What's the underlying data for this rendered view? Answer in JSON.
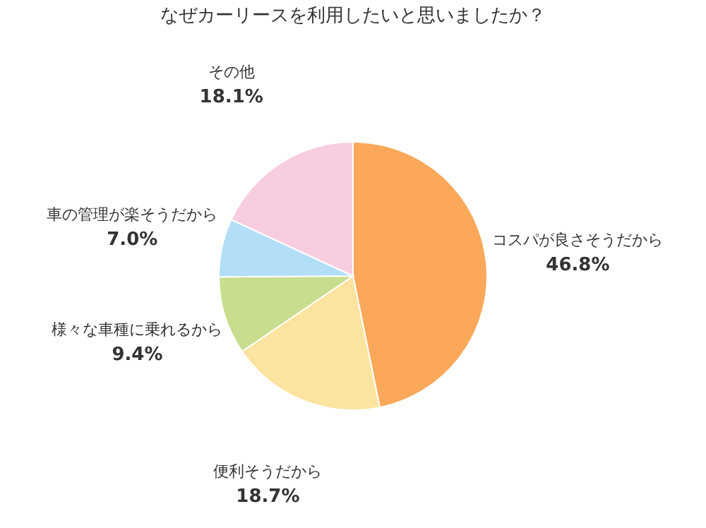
{
  "chart_data": {
    "type": "pie",
    "title": "なぜカーリースを利用したいと思いましたか？",
    "categories": [
      "コスパが良さそうだから",
      "便利そうだから",
      "様々な車種に乗れるから",
      "車の管理が楽そうだから",
      "その他"
    ],
    "values": [
      46.8,
      18.7,
      9.4,
      7.0,
      18.1
    ],
    "value_labels": [
      "46.8%",
      "18.7%",
      "9.4%",
      "7.0%",
      "18.1%"
    ],
    "colors": [
      "#fba85a",
      "#fde3a0",
      "#c9dd8e",
      "#b3def7",
      "#f9cde0"
    ],
    "legend": false
  }
}
